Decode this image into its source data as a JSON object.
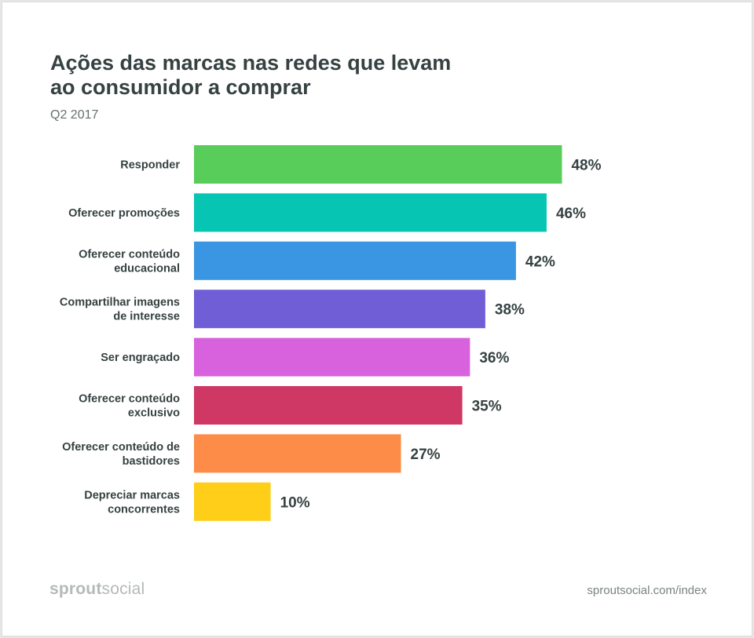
{
  "header": {
    "title_lines": [
      "Ações das marcas nas redes que levam",
      "ao consumidor a comprar"
    ],
    "subtitle": "Q2 2017"
  },
  "footer": {
    "logo_bold": "sprout",
    "logo_light": "social",
    "source": "sproutsocial.com/index"
  },
  "chart_data": {
    "type": "bar",
    "orientation": "horizontal",
    "title": "Ações das marcas nas redes que levam ao consumidor a comprar",
    "subtitle": "Q2 2017",
    "categories": [
      [
        "Responder"
      ],
      [
        "Oferecer promoções"
      ],
      [
        "Oferecer conteúdo",
        "educacional"
      ],
      [
        "Compartilhar imagens",
        "de interesse"
      ],
      [
        "Ser engraçado"
      ],
      [
        "Oferecer conteúdo",
        "exclusivo"
      ],
      [
        "Oferecer conteúdo de",
        "bastidores"
      ],
      [
        "Depreciar marcas",
        "concorrentes"
      ]
    ],
    "values": [
      48,
      46,
      42,
      38,
      36,
      35,
      27,
      10
    ],
    "value_labels": [
      "48%",
      "46%",
      "42%",
      "38%",
      "36%",
      "35%",
      "27%",
      "10%"
    ],
    "colors": [
      "#59cd5a",
      "#07c5b3",
      "#3a96e2",
      "#705ed7",
      "#d861dd",
      "#cf3764",
      "#fd8c48",
      "#fece19"
    ],
    "unit": "%",
    "xlim": [
      0,
      100
    ],
    "grid": false,
    "legend": "none"
  }
}
